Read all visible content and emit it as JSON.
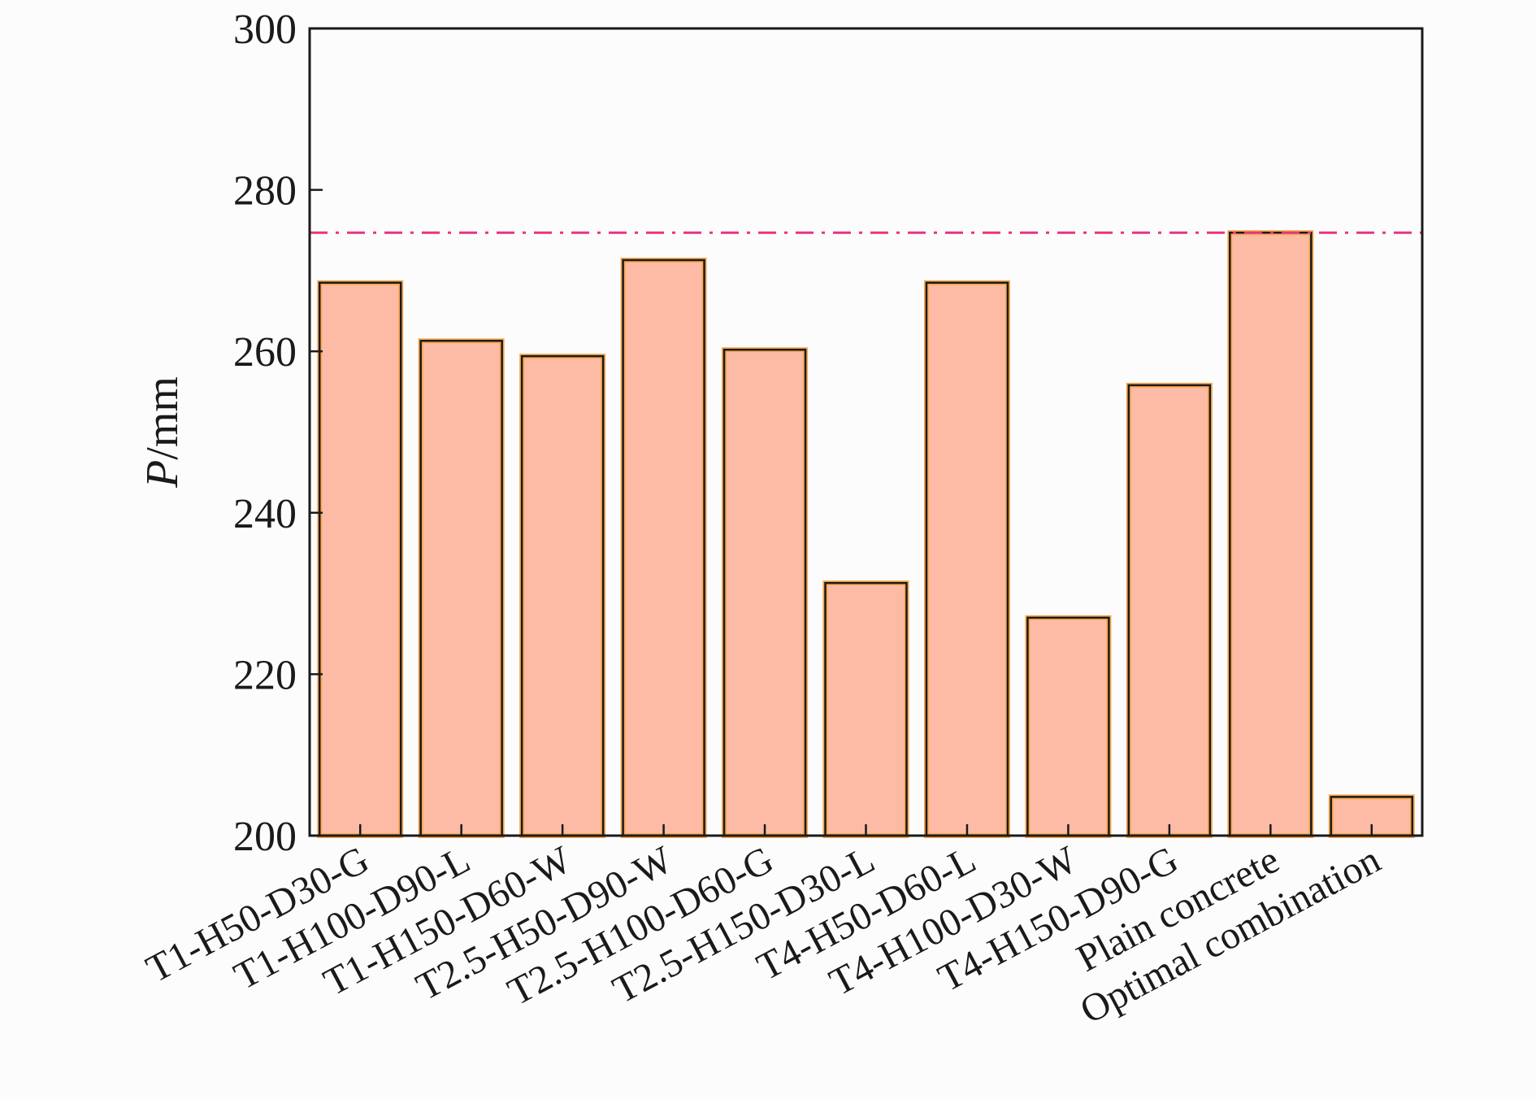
{
  "chart_data": {
    "type": "bar",
    "categories": [
      "T1-H50-D30-G",
      "T1-H100-D90-L",
      "T1-H150-D60-W",
      "T2.5-H50-D90-W",
      "T2.5-H100-D60-G",
      "T2.5-H150-D30-L",
      "T4-H50-D60-L",
      "T4-H100-D30-W",
      "T4-H150-D90-G",
      "Plain concrete",
      "Optimal combination"
    ],
    "values": [
      268.5,
      261.3,
      259.4,
      271.3,
      260.2,
      231.3,
      268.5,
      227.0,
      255.8,
      274.7,
      204.8
    ],
    "title": "",
    "xlabel": "",
    "ylabel": {
      "italic": "P",
      "rest": "/mm"
    },
    "ylim": [
      200,
      300
    ],
    "yticks": [
      200,
      220,
      240,
      260,
      280,
      300
    ],
    "reference_line": {
      "value": 274.7,
      "style": "dash-dot",
      "color": "#e8357e"
    },
    "grid": false,
    "legend": "none",
    "colors": {
      "bar_fill": "#fdbba6",
      "bar_stroke": "#1a1a1a",
      "bar_inner_edge": "#f7a850",
      "axis": "#1a1a1a"
    }
  }
}
